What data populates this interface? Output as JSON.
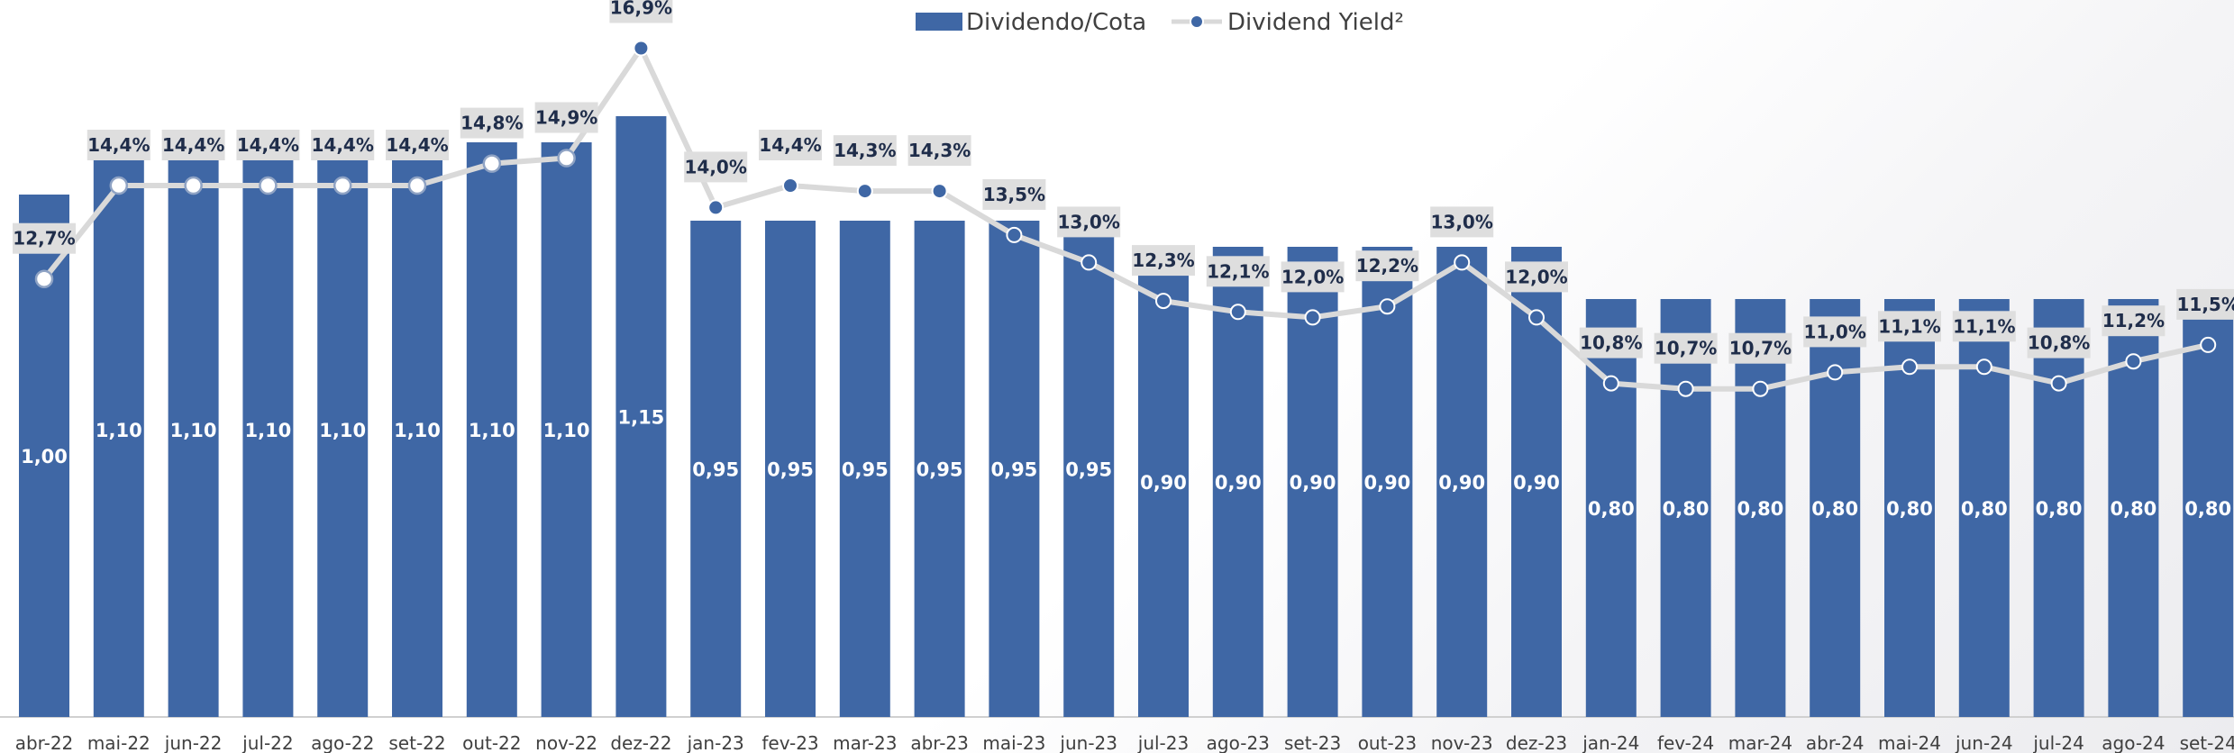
{
  "chart_data": {
    "type": "bar",
    "categories": [
      "abr-22",
      "mai-22",
      "jun-22",
      "jul-22",
      "ago-22",
      "set-22",
      "out-22",
      "nov-22",
      "dez-22",
      "jan-23",
      "fev-23",
      "mar-23",
      "abr-23",
      "mai-23",
      "jun-23",
      "jul-23",
      "ago-23",
      "set-23",
      "out-23",
      "nov-23",
      "dez-23",
      "jan-24",
      "fev-24",
      "mar-24",
      "abr-24",
      "mai-24",
      "jun-24",
      "jul-24",
      "ago-24",
      "set-24"
    ],
    "series": [
      {
        "name": "Dividendo/Cota",
        "type": "bar",
        "color": "#3f67a5",
        "values": [
          1.0,
          1.1,
          1.1,
          1.1,
          1.1,
          1.1,
          1.1,
          1.1,
          1.15,
          0.95,
          0.95,
          0.95,
          0.95,
          0.95,
          0.95,
          0.9,
          0.9,
          0.9,
          0.9,
          0.9,
          0.9,
          0.8,
          0.8,
          0.8,
          0.8,
          0.8,
          0.8,
          0.8,
          0.8,
          0.8
        ],
        "labels": [
          "1,00",
          "1,10",
          "1,10",
          "1,10",
          "1,10",
          "1,10",
          "1,10",
          "1,10",
          "1,15",
          "0,95",
          "0,95",
          "0,95",
          "0,95",
          "0,95",
          "0,95",
          "0,90",
          "0,90",
          "0,90",
          "0,90",
          "0,90",
          "0,90",
          "0,80",
          "0,80",
          "0,80",
          "0,80",
          "0,80",
          "0,80",
          "0,80",
          "0,80",
          "0,80"
        ]
      },
      {
        "name": "Dividend Yield²",
        "type": "line",
        "color": "#d9d9d9",
        "marker_color": "#3f67a5",
        "values": [
          12.7,
          14.4,
          14.4,
          14.4,
          14.4,
          14.4,
          14.8,
          14.9,
          16.9,
          14.0,
          14.4,
          14.3,
          14.3,
          13.5,
          13.0,
          12.3,
          12.1,
          12.0,
          12.2,
          13.0,
          12.0,
          10.8,
          10.7,
          10.7,
          11.0,
          11.1,
          11.1,
          10.8,
          11.2,
          11.5
        ],
        "labels": [
          "12,7%",
          "14,4%",
          "14,4%",
          "14,4%",
          "14,4%",
          "14,4%",
          "14,8%",
          "14,9%",
          "16,9%",
          "14,0%",
          "14,4%",
          "14,3%",
          "14,3%",
          "13,5%",
          "13,0%",
          "12,3%",
          "12,1%",
          "12,0%",
          "12,2%",
          "13,0%",
          "12,0%",
          "10,8%",
          "10,7%",
          "10,7%",
          "11,0%",
          "11,1%",
          "11,1%",
          "10,8%",
          "11,2%",
          "11,5%"
        ]
      }
    ],
    "legend": {
      "position": "top-center",
      "bar_entry": "Dividendo/Cota",
      "line_entry": "Dividend Yield²"
    },
    "title": "",
    "xlabel": "",
    "ylabel": "",
    "grid": false
  }
}
